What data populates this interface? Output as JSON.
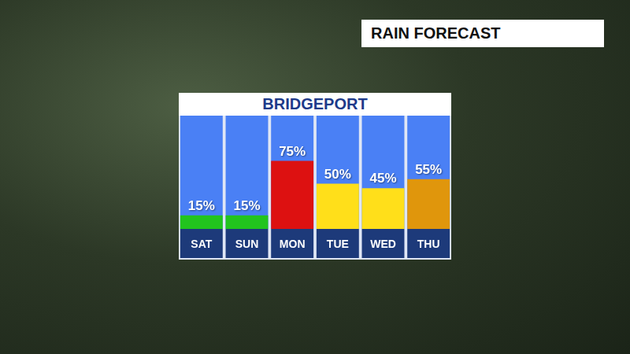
{
  "chart_data": {
    "type": "bar",
    "title": "BRIDGEPORT",
    "subtitle": "RAIN FORECAST",
    "categories": [
      "SAT",
      "SUN",
      "MON",
      "TUE",
      "WED",
      "THU"
    ],
    "values": [
      15,
      15,
      75,
      50,
      45,
      55
    ],
    "value_labels": [
      "15%",
      "15%",
      "75%",
      "50%",
      "45%",
      "55%"
    ],
    "colors": [
      "#22c41e",
      "#22c41e",
      "#dd1111",
      "#ffdf1a",
      "#ffdf1a",
      "#e0960c"
    ],
    "ylim": [
      0,
      125
    ],
    "grid": false,
    "data_labels": true,
    "tick_labels": "x"
  }
}
